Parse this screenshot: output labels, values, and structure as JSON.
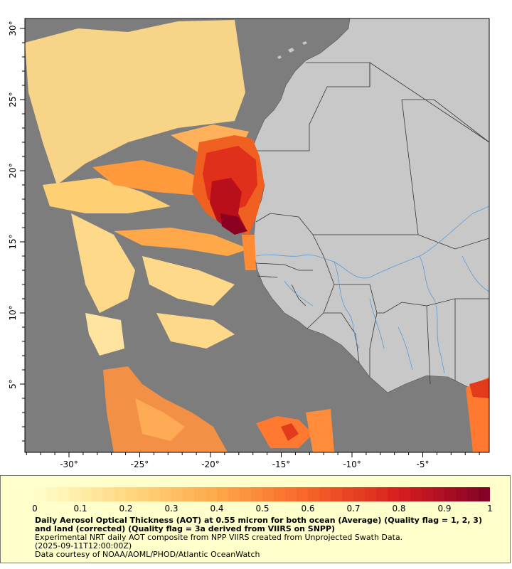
{
  "map": {
    "lon_ticks": [
      {
        "lon": -30,
        "label": "-30°"
      },
      {
        "lon": -25,
        "label": "-25°"
      },
      {
        "lon": -20,
        "label": "-20°"
      },
      {
        "lon": -15,
        "label": "-15°"
      },
      {
        "lon": -10,
        "label": "-10°"
      },
      {
        "lon": -5,
        "label": "-5°"
      }
    ],
    "lat_ticks": [
      {
        "lat": 30,
        "label": "30°"
      },
      {
        "lat": 25,
        "label": "25°"
      },
      {
        "lat": 20,
        "label": "20°"
      },
      {
        "lat": 15,
        "label": "15°"
      },
      {
        "lat": 10,
        "label": "10°"
      },
      {
        "lat": 5,
        "label": "5°"
      }
    ],
    "colors": {
      "ocean": "#7d7d7d",
      "land": "#c8c8c8",
      "border": "#333333",
      "river": "#5a9bd5",
      "low_aot": "#ffe08a",
      "mid_aot": "#ff8c35",
      "high_aot": "#d81818",
      "very_high_aot": "#8b0020"
    }
  },
  "legend": {
    "colorbar_ticks": [
      "0",
      "0.1",
      "0.2",
      "0.3",
      "0.4",
      "0.5",
      "0.6",
      "0.7",
      "0.8",
      "0.9",
      "1"
    ],
    "title": "Daily Aerosol Optical Thickness (AOT) at 0.55 micron for both ocean (Average) (Quality flag = 1, 2, 3) and land (corrected) (Quality flag = 3a derived from VIIRS on SNPP)",
    "line2": "Experimental NRT daily AOT composite from NPP VIIRS created from Unprojected Swath Data.",
    "line3": "(2025-09-11T12:00:00Z)",
    "line4": "Data courtesy of NOAA/AOML/PHOD/Atlantic OceanWatch"
  }
}
